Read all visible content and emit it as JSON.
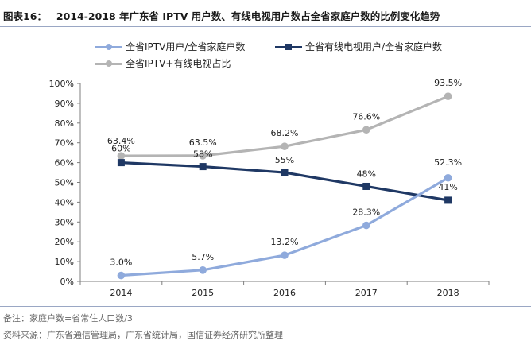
{
  "header": {
    "label": "图表16：",
    "title": "2014-2018 年广东省 IPTV 用户数、有线电视用户数占全省家庭户数的比例变化趋势"
  },
  "footer": {
    "note": "备注：家庭户数=省常住人口数/3",
    "source": "资料来源：广东省通信管理局，广东省统计局，国信证券经济研究所整理"
  },
  "chart_data": {
    "type": "line",
    "categories": [
      "2014",
      "2015",
      "2016",
      "2017",
      "2018"
    ],
    "ylim": [
      0,
      100
    ],
    "yticks": [
      "0%",
      "10%",
      "20%",
      "30%",
      "40%",
      "50%",
      "60%",
      "70%",
      "80%",
      "90%",
      "100%"
    ],
    "grid": false,
    "legend_position": "top",
    "series": [
      {
        "name": "全省IPTV用户/全省家庭户数",
        "values": [
          3.0,
          5.7,
          13.2,
          28.3,
          52.3
        ],
        "labels": [
          "3.0%",
          "5.7%",
          "13.2%",
          "28.3%",
          "52.3%"
        ],
        "color": "#8faadc",
        "marker": "circle"
      },
      {
        "name": "全省有线电视用户/全省家庭户数",
        "values": [
          60,
          58,
          55,
          48,
          41
        ],
        "labels": [
          "60%",
          "58%",
          "55%",
          "48%",
          "41%"
        ],
        "color": "#1f3864",
        "marker": "square"
      },
      {
        "name": "全省IPTV+有线电视占比",
        "values": [
          63.4,
          63.5,
          68.2,
          76.6,
          93.5
        ],
        "labels": [
          "63.4%",
          "63.5%",
          "68.2%",
          "76.6%",
          "93.5%"
        ],
        "color": "#b4b4b4",
        "marker": "circle"
      }
    ]
  }
}
